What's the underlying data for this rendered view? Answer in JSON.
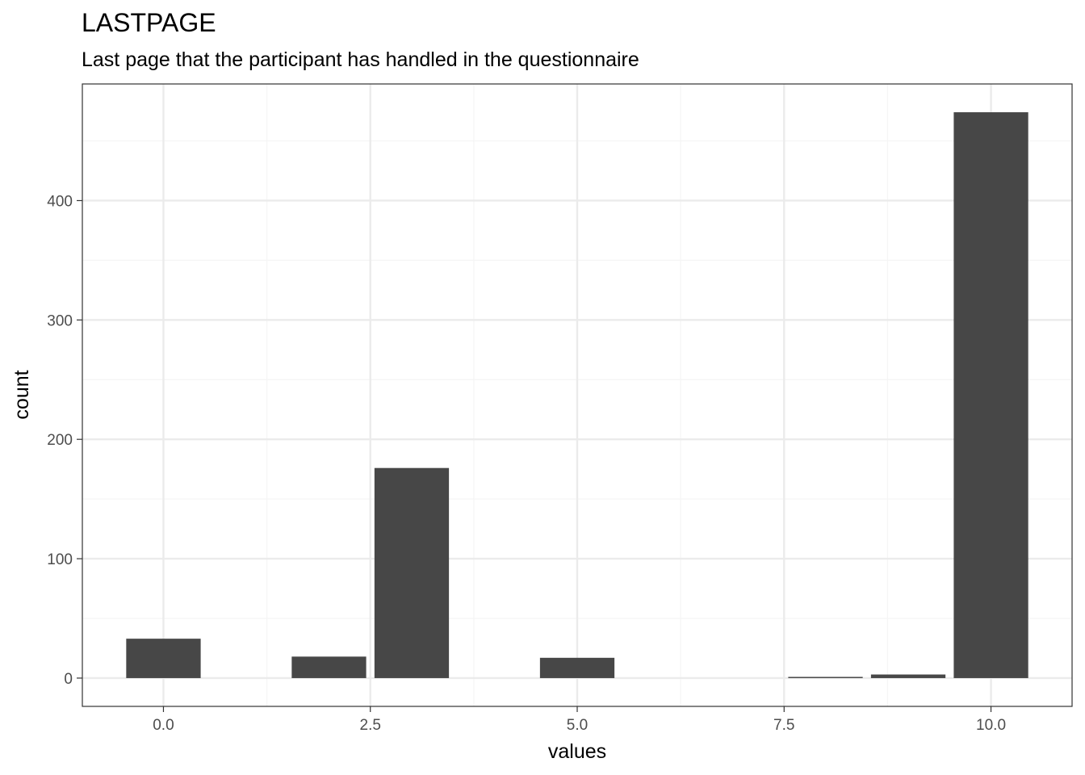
{
  "chart_data": {
    "type": "bar",
    "title": "LASTPAGE",
    "subtitle": "Last page that the participant has handled in the questionnaire",
    "xlabel": "values",
    "ylabel": "count",
    "x": [
      0,
      2,
      3,
      5,
      8,
      9,
      10
    ],
    "values": [
      33,
      18,
      176,
      17,
      1,
      3,
      474
    ],
    "bar_width": 0.9,
    "xlim": [
      -0.98,
      10.98
    ],
    "ylim": [
      -23.7,
      497.7
    ],
    "x_ticks": [
      0,
      2.5,
      5,
      7.5,
      10
    ],
    "x_tick_labels": [
      "0.0",
      "2.5",
      "5.0",
      "7.5",
      "10.0"
    ],
    "y_ticks": [
      0,
      100,
      200,
      300,
      400
    ],
    "y_tick_labels": [
      "0",
      "100",
      "200",
      "300",
      "400"
    ],
    "grid": true,
    "colors": {
      "bar": "#474747",
      "grid_major": "#ebebeb",
      "grid_minor": "#f5f5f5",
      "panel_border": "#333333"
    }
  }
}
